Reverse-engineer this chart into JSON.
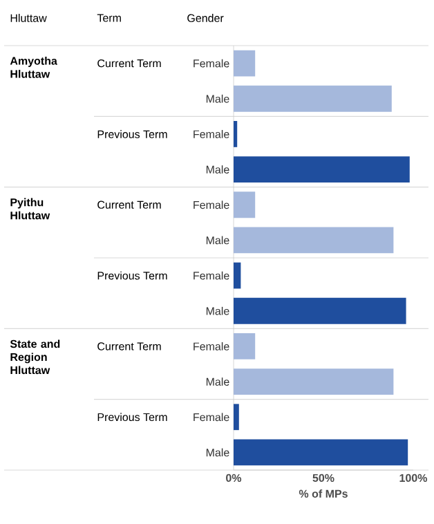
{
  "chart_data": {
    "type": "bar",
    "orientation": "horizontal",
    "categories": [
      "Female",
      "Male",
      "Female",
      "Male",
      "Female",
      "Male",
      "Female",
      "Male",
      "Female",
      "Male",
      "Female",
      "Male"
    ],
    "values": [
      12,
      88,
      2,
      98,
      12,
      89,
      4,
      96,
      12,
      89,
      3,
      97
    ],
    "colors": [
      "#a5b8dc",
      "#a5b8dc",
      "#1f4e9e",
      "#1f4e9e",
      "#a5b8dc",
      "#a5b8dc",
      "#1f4e9e",
      "#1f4e9e",
      "#a5b8dc",
      "#a5b8dc",
      "#1f4e9e",
      "#1f4e9e"
    ],
    "xlim": [
      0,
      100
    ],
    "xticks": [
      {
        "value": 0,
        "label": "0%"
      },
      {
        "value": 50,
        "label": "50%"
      },
      {
        "value": 100,
        "label": "100%"
      }
    ],
    "xlabel": "% of MPs",
    "annotations": [
      "Hluttaw",
      "Term",
      "Gender",
      "Amyotha Hluttaw",
      "Current Term",
      "Previous Term",
      "Pyithu Hluttaw",
      "Current Term",
      "Previous Term",
      "State and Region Hluttaw",
      "Current Term",
      "Previous Term"
    ],
    "grid": false
  }
}
